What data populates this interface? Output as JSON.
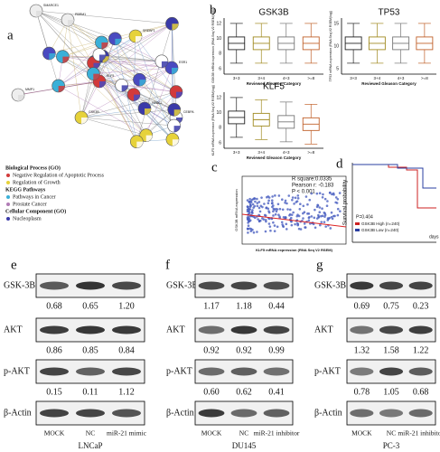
{
  "network": {
    "label": "a",
    "genes": [
      "SMARCE1",
      "PBRM1",
      "SREBF1",
      "ESR1",
      "CEBPA",
      "MMP1",
      "HDAC1",
      "KLF5",
      "GSK3B"
    ],
    "legend": [
      {
        "title": "Biological Process (GO)",
        "items": [
          "Negative Regulation of Apoptotic Process",
          "Regulation of Growth"
        ]
      },
      {
        "title": "KEGG Pathways",
        "items": [
          "Pathways in Cancer",
          "Prostate Cancer"
        ]
      },
      {
        "title": "Cellular Component (GO)",
        "items": [
          "Nucleoplasm"
        ]
      }
    ]
  },
  "expression": {
    "label": "b",
    "x_label": "Reviewed Gleason Category",
    "categories": [
      "3+3",
      "3+4",
      "4+3",
      ">=8"
    ],
    "plots": [
      {
        "title": "GSK3B",
        "y_label": "GSK3B mRNA expression (RNA Seq V2 RSEM(log))",
        "yticks": [
          12,
          10,
          8,
          6
        ]
      },
      {
        "title": "TP53",
        "y_label": "TP53 mRNA expression (RNA Seq V2 RSEM(log))",
        "yticks": [
          15,
          10,
          5
        ]
      },
      {
        "title": "KLF5",
        "y_label": "KLF5 mRNA expression (RNA Seq V2 RSEM(log))",
        "yticks": [
          12,
          10,
          8,
          6
        ]
      }
    ]
  },
  "correlation": {
    "label": "c",
    "stats": [
      "R square:0.0335",
      "Pearson r: -0.183",
      "P < 0.001"
    ],
    "x_label": "KLF5 mRNA expression (RNA Seq V2 RSEM)",
    "y_label": "GSK3B mRNA expression"
  },
  "survival": {
    "label": "d",
    "y_label": "Survival probability",
    "x_label": "days",
    "p_value": "P=0.404",
    "legend": [
      "GSK3B High (n=240)",
      "GSK3B Low (n=240)"
    ]
  },
  "blots": [
    {
      "label": "e",
      "cell_line": "LNCaP",
      "lanes": [
        "MOCK",
        "NC",
        "miR-21  mimic"
      ],
      "rows": [
        {
          "protein": "GSK-3B",
          "values": [
            "0.68",
            "0.65",
            "1.20"
          ]
        },
        {
          "protein": "AKT",
          "values": [
            "0.86",
            "0.85",
            "0.84"
          ]
        },
        {
          "protein": "p-AKT",
          "values": [
            "0.15",
            "0.11",
            "1.12"
          ]
        },
        {
          "protein": "β-Actin"
        }
      ]
    },
    {
      "label": "f",
      "cell_line": "DU145",
      "lanes": [
        "MOCK",
        "NC",
        "miR-21  inhibitor"
      ],
      "rows": [
        {
          "protein": "GSK-3B",
          "values": [
            "1.17",
            "1.18",
            "0.44"
          ]
        },
        {
          "protein": "AKT",
          "values": [
            "0.92",
            "0.92",
            "0.99"
          ]
        },
        {
          "protein": "p-AKT",
          "values": [
            "0.60",
            "0.62",
            "0.41"
          ]
        },
        {
          "protein": "β-Actin"
        }
      ]
    },
    {
      "label": "g",
      "cell_line": "PC-3",
      "lanes": [
        "MOCK",
        "NC",
        "miR-21  inhibitor"
      ],
      "rows": [
        {
          "protein": "GSK-3B",
          "values": [
            "0.69",
            "0.75",
            "0.23"
          ]
        },
        {
          "protein": "AKT",
          "values": [
            "1.32",
            "1.58",
            "1.22"
          ]
        },
        {
          "protein": "p-AKT",
          "values": [
            "0.78",
            "1.05",
            "0.68"
          ]
        },
        {
          "protein": "β-Actin"
        }
      ]
    }
  ]
}
